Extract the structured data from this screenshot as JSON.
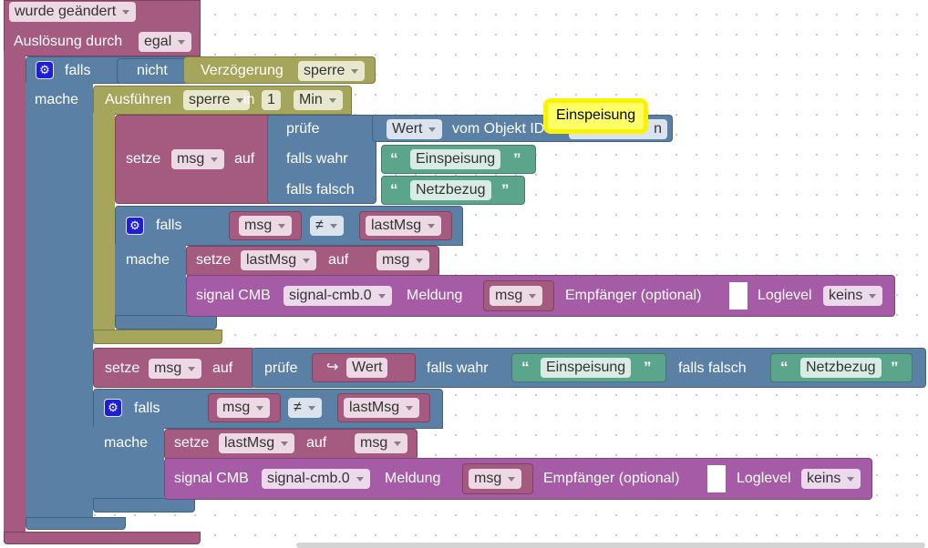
{
  "trigger": {
    "changed_label": "wurde geändert",
    "auslosung_label": "Auslösung durch",
    "auslosung_value": "egal"
  },
  "outer_if": {
    "falls": "falls",
    "mache": "mache",
    "nicht": "nicht",
    "verzoegerung": "Verzögerung",
    "sperre": "sperre"
  },
  "timeout": {
    "ausfuehren": "Ausführen",
    "name": "sperre",
    "in": "in",
    "amount": "1",
    "unit": "Min"
  },
  "set_msg_1": {
    "setze": "setze",
    "var": "msg",
    "auf": "auf",
    "pruefe": "prüfe",
    "wert": "Wert",
    "vom_objekt": "vom Objekt ID",
    "obj_tail": "n",
    "falls_wahr": "falls wahr",
    "falls_falsch": "falls falsch",
    "true_text": "Einspeisung",
    "false_text": "Netzbezug"
  },
  "tooltip": {
    "text": "Einspeisung"
  },
  "inner_if_1": {
    "falls": "falls",
    "mache": "mache",
    "left": "msg",
    "op": "≠",
    "right": "lastMsg",
    "setze": "setze",
    "setvar": "lastMsg",
    "auf": "auf",
    "value": "msg"
  },
  "signal_1": {
    "signal": "signal CMB",
    "instance": "signal-cmb.0",
    "meldung": "Meldung",
    "msg": "msg",
    "empfaenger": "Empfänger (optional)",
    "loglevel": "Loglevel",
    "level": "keins"
  },
  "set_msg_2": {
    "setze": "setze",
    "var": "msg",
    "auf": "auf",
    "pruefe": "prüfe",
    "wert": "Wert",
    "falls_wahr": "falls wahr",
    "true_text": "Einspeisung",
    "falls_falsch": "falls falsch",
    "false_text": "Netzbezug"
  },
  "inner_if_2": {
    "falls": "falls",
    "mache": "mache",
    "left": "msg",
    "op": "≠",
    "right": "lastMsg",
    "setze": "setze",
    "setvar": "lastMsg",
    "auf": "auf",
    "value": "msg"
  },
  "signal_2": {
    "signal": "signal CMB",
    "instance": "signal-cmb.0",
    "meldung": "Meldung",
    "msg": "msg",
    "empfaenger": "Empfänger (optional)",
    "loglevel": "Loglevel",
    "level": "keins"
  },
  "icons": {
    "gear": "gear-icon",
    "return_arrow": "return-arrow-icon"
  }
}
